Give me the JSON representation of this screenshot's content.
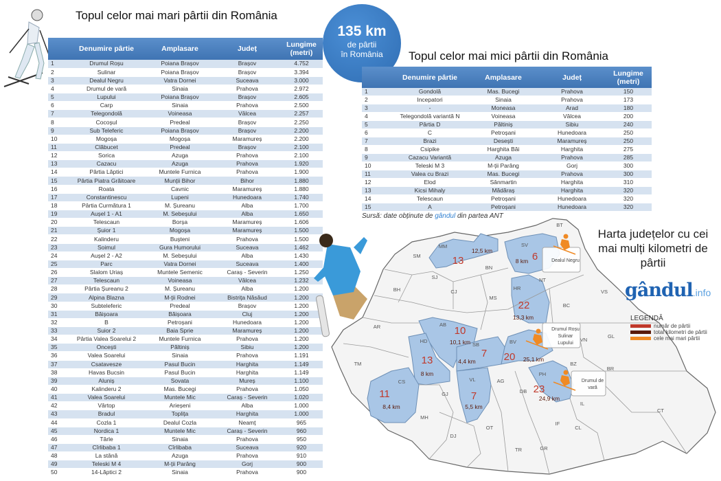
{
  "colors": {
    "header": "#4a7ebb",
    "row_alt": "#d6e2f0",
    "highlight": "#a9c6e6",
    "count": "#c0392b",
    "km": "#5a1a0a",
    "biggest": "#f08a24"
  },
  "left_title": "Topul celor mai mari pârtii din România",
  "right_title": "Topul celor mai mici pârtii din România",
  "circle": {
    "value": "135 km",
    "line1": "de pârtii",
    "line2": "în România"
  },
  "columns": [
    "",
    "Denumire pârtie",
    "Amplasare",
    "Județ",
    "Lungime (metri)"
  ],
  "largest": [
    [
      "1",
      "Drumul Roșu",
      "Poiana Brașov",
      "Brașov",
      "4.752"
    ],
    [
      "2",
      "Sulinar",
      "Poiana Brașov",
      "Brașov",
      "3.394"
    ],
    [
      "3",
      "Dealul Negru",
      "Vatra Dornei",
      "Suceava",
      "3.000"
    ],
    [
      "4",
      "Drumul de vară",
      "Sinaia",
      "Prahova",
      "2.972"
    ],
    [
      "5",
      "Lupului",
      "Poiana Brașov",
      "Brașov",
      "2.605"
    ],
    [
      "6",
      "Carp",
      "Sinaia",
      "Prahova",
      "2.500"
    ],
    [
      "7",
      "Telegondolă",
      "Voineasa",
      "Vâlcea",
      "2.257"
    ],
    [
      "8",
      "Cocoșul",
      "Predeal",
      "Brașov",
      "2.250"
    ],
    [
      "9",
      "Sub Teleferic",
      "Poiana Brașov",
      "Brașov",
      "2.200"
    ],
    [
      "10",
      "Mogoșa",
      "Mogoșa",
      "Maramureș",
      "2.200"
    ],
    [
      "11",
      "Clăbucet",
      "Predeal",
      "Brașov",
      "2.100"
    ],
    [
      "12",
      "Sorica",
      "Azuga",
      "Prahova",
      "2.100"
    ],
    [
      "13",
      "Cazacu",
      "Azuga",
      "Prahova",
      "1.920"
    ],
    [
      "14",
      "Pârtia Lăptici",
      "Muntele Furnica",
      "Prahova",
      "1.900"
    ],
    [
      "15",
      "Pârtia Piatra Grăitoare",
      "Munții Bihor",
      "Bihor",
      "1.880"
    ],
    [
      "16",
      "Roata",
      "Cavnic",
      "Maramureș",
      "1.880"
    ],
    [
      "17",
      "Constantinescu",
      "Lupeni",
      "Hunedoara",
      "1.740"
    ],
    [
      "18",
      "Pârtia Curmătura 1",
      "M. Șureanu",
      "Alba",
      "1.700"
    ],
    [
      "19",
      "Aușel 1 - A1",
      "M. Sebeșului",
      "Alba",
      "1.650"
    ],
    [
      "20",
      "Telescaun",
      "Borșa",
      "Maramureș",
      "1.606"
    ],
    [
      "21",
      "Șuior 1",
      "Mogoșa",
      "Maramureș",
      "1.500"
    ],
    [
      "22",
      "Kalinderu",
      "Bușteni",
      "Prahova",
      "1.500"
    ],
    [
      "23",
      "Soimul",
      "Gura Humorului",
      "Suceava",
      "1.462"
    ],
    [
      "24",
      "Aușel 2 - A2",
      "M. Sebeșului",
      "Alba",
      "1.430"
    ],
    [
      "25",
      "Parc",
      "Vatra Dornei",
      "Suceava",
      "1.400"
    ],
    [
      "26",
      "Slalom Uriaș",
      "Muntele Semenic",
      "Caraș - Severin",
      "1.250"
    ],
    [
      "27",
      "Telescaun",
      "Voineasa",
      "Vâlcea",
      "1.232"
    ],
    [
      "28",
      "Pârtia Șureanu 2",
      "M. Șureanu",
      "Alba",
      "1.200"
    ],
    [
      "29",
      "Alpina Blazna",
      "M-ții Rodnei",
      "Bistrița Năsăud",
      "1.200"
    ],
    [
      "30",
      "Subteleferic",
      "Predeal",
      "Brașov",
      "1.200"
    ],
    [
      "31",
      "Băișoara",
      "Băișoara",
      "Cluj",
      "1.200"
    ],
    [
      "32",
      "B",
      "Petroșani",
      "Hunedoara",
      "1.200"
    ],
    [
      "33",
      "Suior 2",
      "Baia Sprie",
      "Maramureș",
      "1.200"
    ],
    [
      "34",
      "Pârtia Valea Soarelui 2",
      "Muntele Furnica",
      "Prahova",
      "1.200"
    ],
    [
      "35",
      "Oncești",
      "Păltiniș",
      "Sibiu",
      "1.200"
    ],
    [
      "36",
      "Valea Soarelui",
      "Sinaia",
      "Prahova",
      "1.191"
    ],
    [
      "37",
      "Csatavesze",
      "Pasul Bucin",
      "Harghita",
      "1.149"
    ],
    [
      "38",
      "Havas Bucsin",
      "Pasul Bucin",
      "Harghita",
      "1.149"
    ],
    [
      "39",
      "Aluniș",
      "Sovata",
      "Mureș",
      "1.100"
    ],
    [
      "40",
      "Kalinderu 2",
      "Mas. Bucegi",
      "Prahova",
      "1.050"
    ],
    [
      "41",
      "Valea Soarelui",
      "Muntele Mic",
      "Caraș - Severin",
      "1.020"
    ],
    [
      "42",
      "Vârtop",
      "Arieșeni",
      "Alba",
      "1.000"
    ],
    [
      "43",
      "Bradul",
      "Toplița",
      "Harghita",
      "1.000"
    ],
    [
      "44",
      "Cozla 1",
      "Dealul Cozla",
      "Neamț",
      "965"
    ],
    [
      "45",
      "Nordica 1",
      "Muntele Mic",
      "Caraș - Severin",
      "960"
    ],
    [
      "46",
      "Târle",
      "Sinaia",
      "Prahova",
      "950"
    ],
    [
      "47",
      "Cîrlibaba 1",
      "Cîrlibaba",
      "Suceava",
      "920"
    ],
    [
      "48",
      "La stână",
      "Azuga",
      "Prahova",
      "910"
    ],
    [
      "49",
      "Teleski M 4",
      "M-ții Parâng",
      "Gorj",
      "900"
    ],
    [
      "50",
      "14-Lăptici 2",
      "Sinaia",
      "Prahova",
      "900"
    ]
  ],
  "smallest": [
    [
      "1",
      "Gondolă",
      "Mas. Bucegi",
      "Prahova",
      "150"
    ],
    [
      "2",
      "Incepatori",
      "Sinaia",
      "Prahova",
      "173"
    ],
    [
      "3",
      "-",
      "Moneasa",
      "Arad",
      "180"
    ],
    [
      "4",
      "Telegondolă variantă N",
      "Voineasa",
      "Vâlcea",
      "200"
    ],
    [
      "5",
      "Pârtia D",
      "Păltiniș",
      "Sibiu",
      "240"
    ],
    [
      "6",
      "C",
      "Petroșani",
      "Hunedoara",
      "250"
    ],
    [
      "7",
      "Brazi",
      "Desești",
      "Maramureș",
      "250"
    ],
    [
      "8",
      "Csipike",
      "Harghita Băi",
      "Harghita",
      "275"
    ],
    [
      "9",
      "Cazacu Variantă",
      "Azuga",
      "Prahova",
      "285"
    ],
    [
      "10",
      "Teleski M 3",
      "M-ții Parâng",
      "Gorj",
      "300"
    ],
    [
      "11",
      "Valea cu Brazi",
      "Mas. Bucegi",
      "Prahova",
      "300"
    ],
    [
      "12",
      "Elod",
      "Sânmartin",
      "Harghita",
      "310"
    ],
    [
      "13",
      "Kicsi Mihaly",
      "Mădăraș",
      "Harghita",
      "320"
    ],
    [
      "14",
      "Telescaun",
      "Petroșani",
      "Hunedoara",
      "320"
    ],
    [
      "15",
      "A",
      "Petroșani",
      "Hunedoara",
      "320"
    ]
  ],
  "source": {
    "prefix": "Sursă: date obținute de ",
    "brand": "gândul",
    "suffix": " din partea ANT"
  },
  "map": {
    "title": "Harta județelor cu cei mai mulți kilometri de pârtii",
    "logo": "gândul",
    "logo_suffix": ".info",
    "legend": {
      "title": "LEGENDĂ",
      "items": [
        "număr de pârtii",
        "total kilometri de pârtii",
        "cele mai mari pârtii"
      ]
    },
    "counties": [
      "BT",
      "SV",
      "MM",
      "SM",
      "BN",
      "NT",
      "SJ",
      "BH",
      "CJ",
      "HR",
      "MS",
      "BC",
      "VS",
      "AR",
      "AB",
      "HD",
      "SB",
      "BV",
      "TM",
      "CS",
      "GJ",
      "VL",
      "AG",
      "DB",
      "PH",
      "BZ",
      "VN",
      "GL",
      "BR",
      "IL",
      "IF",
      "CL",
      "CT",
      "DJ",
      "OT",
      "TR",
      "GR",
      "MH"
    ],
    "highlighted": [
      {
        "code": "MM",
        "count": "13",
        "km": "12,5 km"
      },
      {
        "code": "SV",
        "count": "6",
        "km": "8 km"
      },
      {
        "code": "HR",
        "count": "22",
        "km": "13,3 km"
      },
      {
        "code": "AB",
        "count": "10",
        "km": "10,1 km"
      },
      {
        "code": "HD",
        "count": "13",
        "km": "8 km"
      },
      {
        "code": "SB",
        "count": "7",
        "km": "4,4 km"
      },
      {
        "code": "BV",
        "count": "20",
        "km": "25,1 km"
      },
      {
        "code": "PH",
        "count": "23",
        "km": "24,9 km"
      },
      {
        "code": "CS",
        "count": "11",
        "km": "8,4 km"
      },
      {
        "code": "VL",
        "count": "7",
        "km": "5,5 km"
      }
    ],
    "callouts": [
      {
        "lines": [
          "Dealul Negru"
        ]
      },
      {
        "lines": [
          "Drumul Roșu",
          "Sulinar",
          "Lupului"
        ]
      },
      {
        "lines": [
          "Drumul de",
          "vară"
        ]
      }
    ]
  }
}
